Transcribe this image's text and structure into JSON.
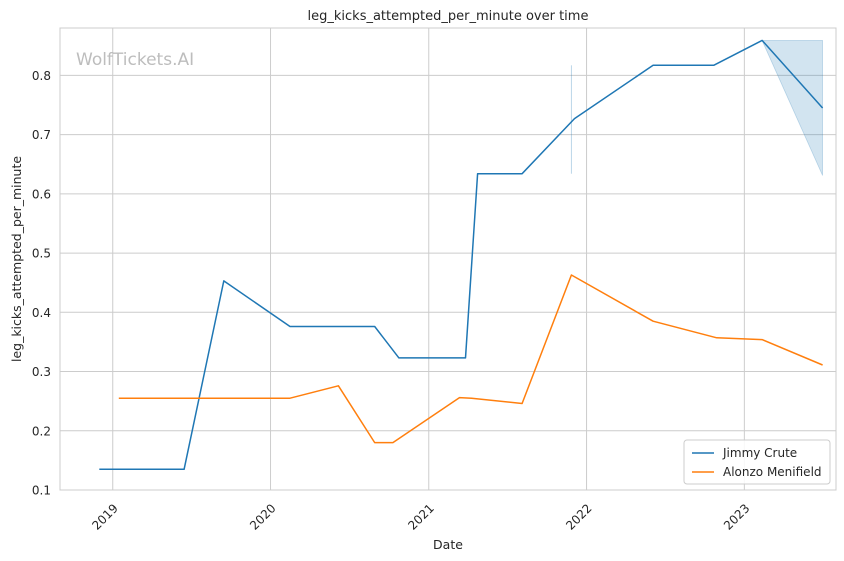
{
  "watermark": "WolfTickets.AI",
  "chart_data": {
    "type": "line",
    "title": "leg_kicks_attempted_per_minute over time",
    "xlabel": "Date",
    "ylabel": "leg_kicks_attempted_per_minute",
    "x_axis_type": "date",
    "xlim": [
      "2018-09-01",
      "2023-08-01"
    ],
    "ylim": [
      0.1,
      0.88
    ],
    "xticks": [
      "2019-01-01",
      "2020-01-01",
      "2021-01-01",
      "2022-01-01",
      "2023-01-01"
    ],
    "xtick_labels": [
      "2019",
      "2020",
      "2021",
      "2022",
      "2023"
    ],
    "yticks": [
      0.1,
      0.2,
      0.3,
      0.4,
      0.5,
      0.6,
      0.7,
      0.8
    ],
    "ytick_labels": [
      "0.1",
      "0.2",
      "0.3",
      "0.4",
      "0.5",
      "0.6",
      "0.7",
      "0.8"
    ],
    "grid": true,
    "legend_position": "lower-right",
    "series": [
      {
        "name": "Jimmy Crute",
        "color": "#1f77b4",
        "points": [
          {
            "x": "2018-12-01",
            "y": 0.135
          },
          {
            "x": "2019-06-15",
            "y": 0.135
          },
          {
            "x": "2019-09-15",
            "y": 0.453
          },
          {
            "x": "2020-02-15",
            "y": 0.376
          },
          {
            "x": "2020-08-29",
            "y": 0.376
          },
          {
            "x": "2020-10-24",
            "y": 0.323
          },
          {
            "x": "2021-03-27",
            "y": 0.323
          },
          {
            "x": "2021-04-24",
            "y": 0.634
          },
          {
            "x": "2021-08-05",
            "y": 0.634
          },
          {
            "x": "2021-12-04",
            "y": 0.727
          },
          {
            "x": "2022-06-04",
            "y": 0.817
          },
          {
            "x": "2022-10-22",
            "y": 0.817
          },
          {
            "x": "2023-02-11",
            "y": 0.859
          },
          {
            "x": "2023-07-01",
            "y": 0.745
          }
        ],
        "bands": [
          {
            "x": "2021-11-27",
            "low": 0.634,
            "high": 0.817
          },
          {
            "x": "2023-02-11",
            "low": 0.859,
            "high": 0.859
          },
          {
            "x": "2023-07-01",
            "low": 0.631,
            "high": 0.859
          }
        ]
      },
      {
        "name": "Alonzo Menifield",
        "color": "#ff7f0e",
        "points": [
          {
            "x": "2019-01-15",
            "y": 0.255
          },
          {
            "x": "2020-02-15",
            "y": 0.255
          },
          {
            "x": "2020-06-06",
            "y": 0.276
          },
          {
            "x": "2020-08-29",
            "y": 0.18
          },
          {
            "x": "2020-10-10",
            "y": 0.18
          },
          {
            "x": "2021-03-13",
            "y": 0.256
          },
          {
            "x": "2021-04-10",
            "y": 0.255
          },
          {
            "x": "2021-08-05",
            "y": 0.246
          },
          {
            "x": "2021-11-27",
            "y": 0.463
          },
          {
            "x": "2022-06-04",
            "y": 0.385
          },
          {
            "x": "2022-10-29",
            "y": 0.357
          },
          {
            "x": "2023-02-11",
            "y": 0.354
          },
          {
            "x": "2023-07-01",
            "y": 0.311
          }
        ]
      }
    ]
  }
}
